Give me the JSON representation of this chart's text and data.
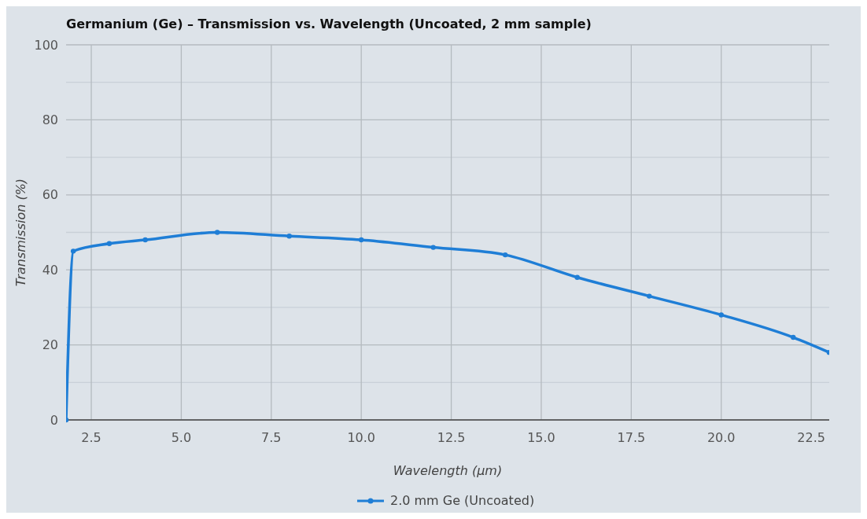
{
  "chart_data": {
    "type": "line",
    "title": "Germanium (Ge) – Transmission vs. Wavelength (Uncoated, 2 mm sample)",
    "xlabel": "Wavelength (µm)",
    "ylabel": "Transmission (%)",
    "x": [
      1.8,
      2,
      3,
      4,
      6,
      8,
      10,
      12,
      14,
      16,
      18,
      20,
      22,
      23
    ],
    "series": [
      {
        "name": "2.0 mm Ge (Uncoated)",
        "color": "#1f7ed6",
        "values": [
          0,
          45,
          47,
          48,
          50,
          49,
          48,
          46,
          44,
          38,
          33,
          28,
          22,
          18
        ]
      }
    ],
    "xlim": [
      1.8,
      23
    ],
    "xticks": [
      2.5,
      {
        "value": 5,
        "label": "5.0"
      },
      7.5,
      {
        "value": 10,
        "label": "10.0"
      },
      12.5,
      {
        "value": 15,
        "label": "15.0"
      },
      17.5,
      {
        "value": 20,
        "label": "20.0"
      },
      22.5
    ],
    "ylim": [
      0,
      100
    ],
    "yticks": [
      0,
      {
        "value": 10,
        "label": null
      },
      20,
      {
        "value": 30,
        "label": null
      },
      40,
      {
        "value": 50,
        "label": null
      },
      60,
      {
        "value": 70,
        "label": null
      },
      80,
      {
        "value": 90,
        "label": null
      },
      100
    ],
    "grid": true,
    "legend": "bottom",
    "marker": "circle",
    "line_style": "solid"
  }
}
